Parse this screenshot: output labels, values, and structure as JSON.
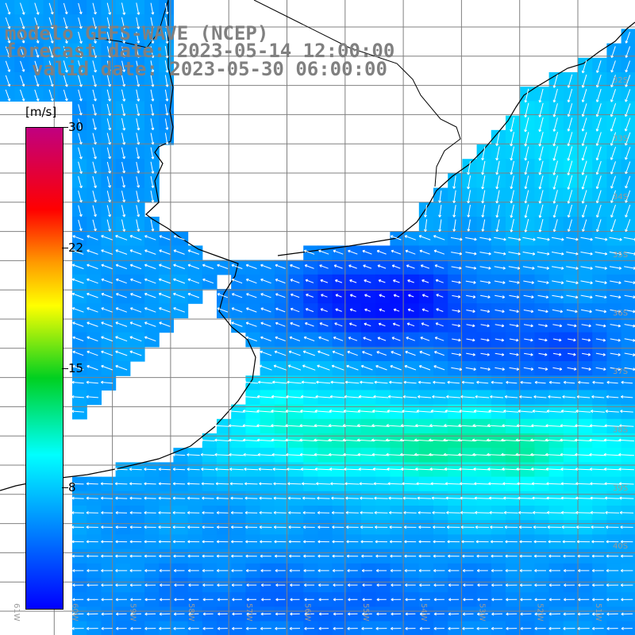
{
  "title": {
    "line1": "modelo GEFS-WAVE (NCEP)",
    "line2": "forecast date: 2023-05-14 12:00:00",
    "line3": "valid date: 2023-05-30 06:00:00"
  },
  "colorbar": {
    "unit": "[m/s]",
    "min": 0,
    "max": 30,
    "tick_labels": [
      "30",
      "22",
      "15",
      "8"
    ],
    "tick_values": [
      30,
      22,
      15,
      8
    ],
    "colors": [
      "#0000ff",
      "#00ffff",
      "#00d020",
      "#ffff00",
      "#ff9a00",
      "#ff0000",
      "#c00080"
    ]
  },
  "map": {
    "field": "wind speed",
    "land_color": "#ffffff",
    "grid_color": "#808080",
    "coastline_color": "#000000",
    "arrow_color": "#ffffff",
    "lat_labels": [
      "32S",
      "33S",
      "34S",
      "35S",
      "36S",
      "37S",
      "38S",
      "39S",
      "40S"
    ],
    "lon_labels": [
      "61W",
      "60W",
      "59W",
      "58W",
      "57W",
      "56W",
      "55W",
      "54W",
      "53W",
      "52W",
      "51W",
      "50W"
    ]
  }
}
